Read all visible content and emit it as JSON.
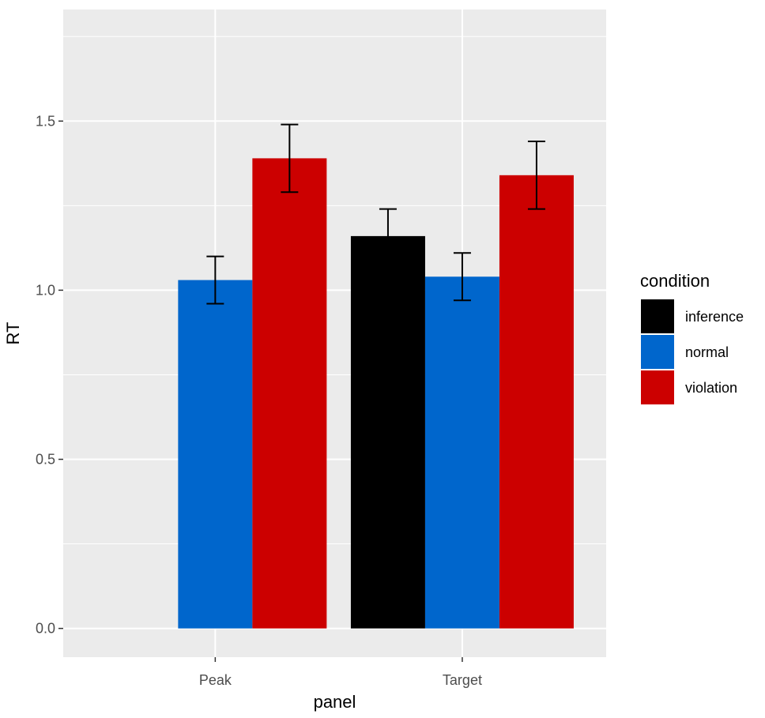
{
  "chart_data": {
    "type": "bar",
    "categories": [
      "Peak",
      "Target"
    ],
    "xlabel": "panel",
    "ylabel": "RT",
    "ylim": [
      -0.085,
      1.83
    ],
    "yticks": [
      "0.0",
      "0.5",
      "1.0",
      "1.5"
    ],
    "yticks_values": [
      0,
      0.5,
      1.0,
      1.5
    ],
    "grid": true,
    "legend": {
      "title": "condition",
      "position": "right",
      "entries": [
        {
          "label": "inference",
          "color": "#000000"
        },
        {
          "label": "normal",
          "color": "#0066cc"
        },
        {
          "label": "violation",
          "color": "#cc0000"
        }
      ]
    },
    "series": [
      {
        "name": "inference",
        "color": "#000000",
        "values": [
          null,
          1.16
        ],
        "err_low": [
          null,
          1.08
        ],
        "err_high": [
          null,
          1.24
        ]
      },
      {
        "name": "normal",
        "color": "#0066cc",
        "values": [
          1.03,
          1.04
        ],
        "err_low": [
          0.96,
          0.97
        ],
        "err_high": [
          1.1,
          1.11
        ]
      },
      {
        "name": "violation",
        "color": "#cc0000",
        "values": [
          1.39,
          1.34
        ],
        "err_low": [
          1.29,
          1.24
        ],
        "err_high": [
          1.49,
          1.44
        ]
      }
    ]
  }
}
